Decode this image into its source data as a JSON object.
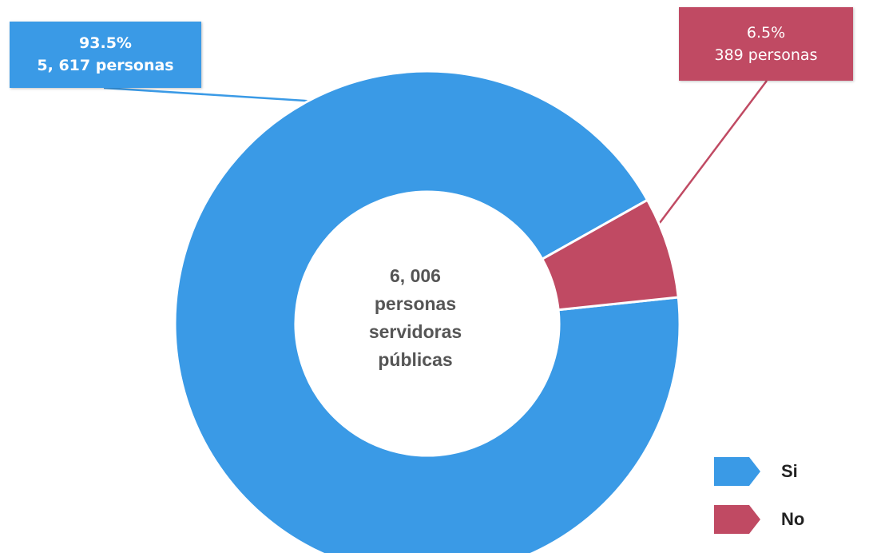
{
  "chart_data": {
    "type": "pie",
    "variant": "donut",
    "total": 6006,
    "center_label": [
      "6, 006",
      "personas",
      "servidoras",
      "públicas"
    ],
    "slices": [
      {
        "name": "Si",
        "value": 5617,
        "percent": 93.5,
        "percent_label": "93.5%",
        "count_label": "5, 617 personas",
        "color": "#3a9ae6"
      },
      {
        "name": "No",
        "value": 389,
        "percent": 6.5,
        "percent_label": "6.5%",
        "count_label": "389 personas",
        "color": "#c04a63"
      }
    ],
    "legend": [
      {
        "label": "Si",
        "color": "#3a9ae6"
      },
      {
        "label": "No",
        "color": "#c04a63"
      }
    ],
    "legend_position": "bottom-right"
  }
}
